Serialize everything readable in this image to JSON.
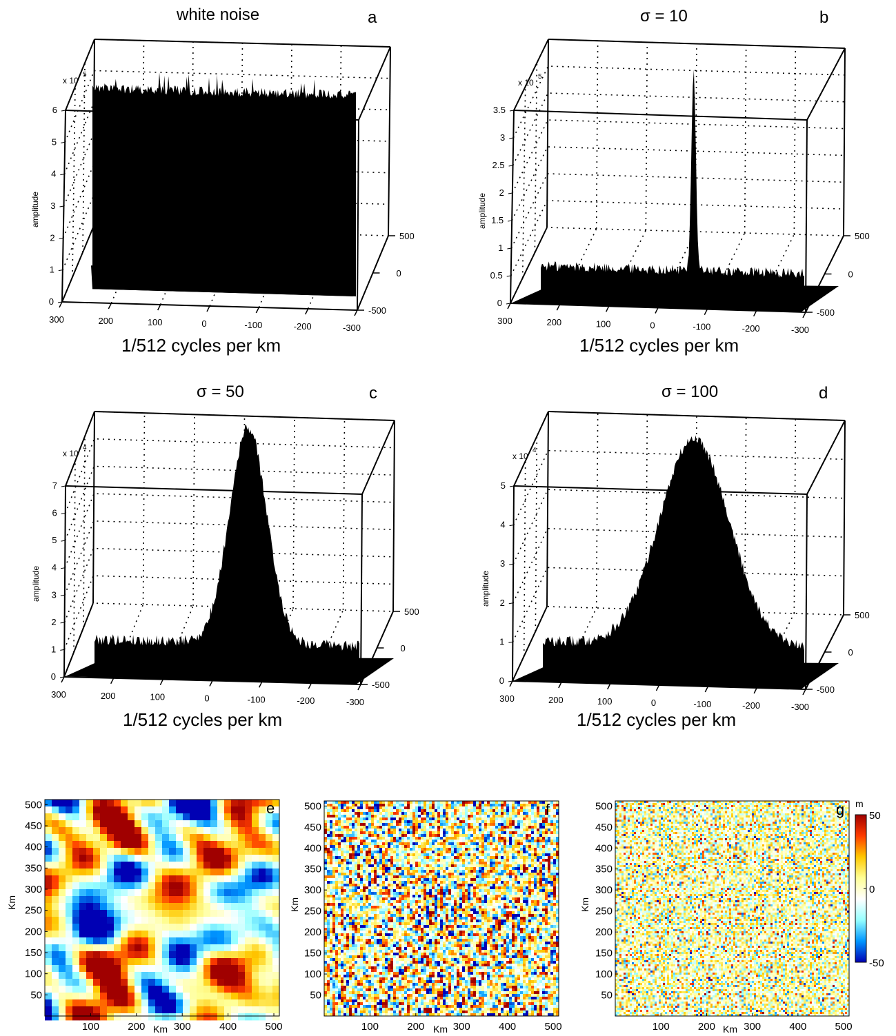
{
  "chart_data": [
    {
      "id": "a",
      "type": "area",
      "title": "white noise",
      "panel_letter": "a",
      "zlabel": "amplitude",
      "z_multiplier": "x 10",
      "z_exponent": "5",
      "xlabel": "1/512 cycles per km",
      "x_ticks": [
        "300",
        "200",
        "100",
        "0",
        "-100",
        "-200",
        "-300"
      ],
      "y_ticks": [
        "500",
        "0",
        "-500"
      ],
      "z_ticks": [
        "0",
        "1",
        "2",
        "3",
        "4",
        "5",
        "6"
      ],
      "zlim": [
        0,
        6
      ],
      "profile": "flat",
      "base_level": 0.5,
      "peak_level": 5.8
    },
    {
      "id": "b",
      "type": "area",
      "title": "σ = 10",
      "panel_letter": "b",
      "zlabel": "amplitude",
      "z_multiplier": "x 10",
      "z_exponent": "5",
      "xlabel": "1/512 cycles per km",
      "x_ticks": [
        "300",
        "200",
        "100",
        "0",
        "-100",
        "-200",
        "-300"
      ],
      "y_ticks": [
        "500",
        "0",
        "-500"
      ],
      "z_ticks": [
        "0",
        "0.5",
        "1",
        "1.5",
        "2",
        "2.5",
        "3",
        "3.5"
      ],
      "zlim": [
        0,
        3.5
      ],
      "profile": "gaussian",
      "base_level": 0.1,
      "peak_level": 3.7,
      "sigma": 10
    },
    {
      "id": "c",
      "type": "area",
      "title": "σ = 50",
      "panel_letter": "c",
      "zlabel": "amplitude",
      "z_multiplier": "x 10",
      "z_exponent": "4",
      "xlabel": "1/512 cycles per km",
      "x_ticks": [
        "300",
        "200",
        "100",
        "0",
        "-100",
        "-200",
        "-300"
      ],
      "y_ticks": [
        "500",
        "0",
        "-500"
      ],
      "z_ticks": [
        "0",
        "1",
        "2",
        "3",
        "4",
        "5",
        "6",
        "7"
      ],
      "zlim": [
        0,
        7
      ],
      "profile": "gaussian",
      "base_level": 0.2,
      "peak_level": 8.1,
      "sigma": 50
    },
    {
      "id": "d",
      "type": "area",
      "title": "σ = 100",
      "panel_letter": "d",
      "zlabel": "amplitude",
      "z_multiplier": "x 10",
      "z_exponent": "4",
      "xlabel": "1/512 cycles per km",
      "x_ticks": [
        "300",
        "200",
        "100",
        "0",
        "-100",
        "-200",
        "-300"
      ],
      "y_ticks": [
        "500",
        "0",
        "-500"
      ],
      "z_ticks": [
        "0",
        "1",
        "2",
        "3",
        "4",
        "5"
      ],
      "zlim": [
        0,
        5
      ],
      "profile": "gaussian",
      "base_level": 0.2,
      "peak_level": 5.5,
      "sigma": 100
    },
    {
      "id": "e",
      "type": "heatmap",
      "panel_letter": "e",
      "xlabel": "Km",
      "ylabel": "Km",
      "x_ticks": [
        "100",
        "200",
        "300",
        "400",
        "500"
      ],
      "y_ticks": [
        "50",
        "100",
        "150",
        "200",
        "250",
        "300",
        "350",
        "400",
        "450",
        "500"
      ],
      "xlim": [
        0,
        512
      ],
      "ylim": [
        0,
        512
      ],
      "texture": "smooth"
    },
    {
      "id": "f",
      "type": "heatmap",
      "panel_letter": "f",
      "xlabel": "Km",
      "ylabel": "Km",
      "x_ticks": [
        "100",
        "200",
        "300",
        "400",
        "500"
      ],
      "y_ticks": [
        "50",
        "100",
        "150",
        "200",
        "250",
        "300",
        "350",
        "400",
        "450",
        "500"
      ],
      "xlim": [
        0,
        512
      ],
      "ylim": [
        0,
        512
      ],
      "texture": "medium"
    },
    {
      "id": "g",
      "type": "heatmap",
      "panel_letter": "g",
      "xlabel": "Km",
      "ylabel": "Km",
      "x_ticks": [
        "100",
        "200",
        "300",
        "400",
        "500"
      ],
      "y_ticks": [
        "50",
        "100",
        "150",
        "200",
        "250",
        "300",
        "350",
        "400",
        "450",
        "500"
      ],
      "xlim": [
        0,
        512
      ],
      "ylim": [
        0,
        512
      ],
      "texture": "fine",
      "colorbar": {
        "unit": "m",
        "ticks": [
          "50",
          "0",
          "-50"
        ],
        "range": [
          -50,
          50
        ],
        "colors": [
          "#0000b4",
          "#0096ff",
          "#96ffff",
          "#ffffff",
          "#ffff96",
          "#ffc800",
          "#ff3c00",
          "#a00000"
        ]
      }
    }
  ]
}
